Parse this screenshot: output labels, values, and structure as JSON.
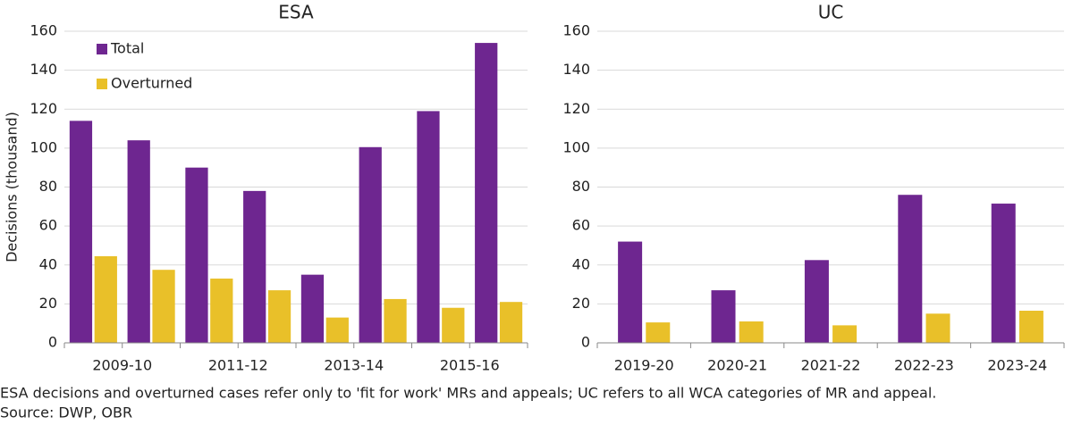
{
  "chart_data": [
    {
      "type": "bar",
      "title": "ESA",
      "y_label": "Decisions (thousand)",
      "categories": [
        "2009-10",
        null,
        "2011-12",
        null,
        "2013-14",
        null,
        "2015-16",
        null
      ],
      "series": [
        {
          "name": "Total",
          "color": "#6e2690",
          "values": [
            114,
            104,
            90,
            78,
            35,
            100.5,
            119,
            154
          ]
        },
        {
          "name": "Overturned",
          "color": "#e9c029",
          "values": [
            44.5,
            37.5,
            33,
            27,
            13,
            22.5,
            18,
            21
          ]
        }
      ],
      "ylim": [
        0,
        160
      ],
      "yticks": [
        0,
        20,
        40,
        60,
        80,
        100,
        120,
        140,
        160
      ],
      "grid": true,
      "legend": "upper left"
    },
    {
      "type": "bar",
      "title": "UC",
      "categories": [
        "2019-20",
        "2020-21",
        "2021-22",
        "2022-23",
        "2023-24"
      ],
      "series": [
        {
          "name": "Total",
          "color": "#6e2690",
          "values": [
            52,
            27,
            42.5,
            76,
            71.5
          ]
        },
        {
          "name": "Overturned",
          "color": "#e9c029",
          "values": [
            10.5,
            11,
            9,
            15,
            16.5
          ]
        }
      ],
      "ylim": [
        0,
        160
      ],
      "yticks": [
        0,
        20,
        40,
        60,
        80,
        100,
        120,
        140,
        160
      ],
      "grid": true
    }
  ],
  "notes": [
    "ESA decisions and overturned cases refer only to 'fit for work' MRs and appeals; UC refers to all WCA categories of MR and appeal.",
    "Source: DWP, OBR"
  ]
}
